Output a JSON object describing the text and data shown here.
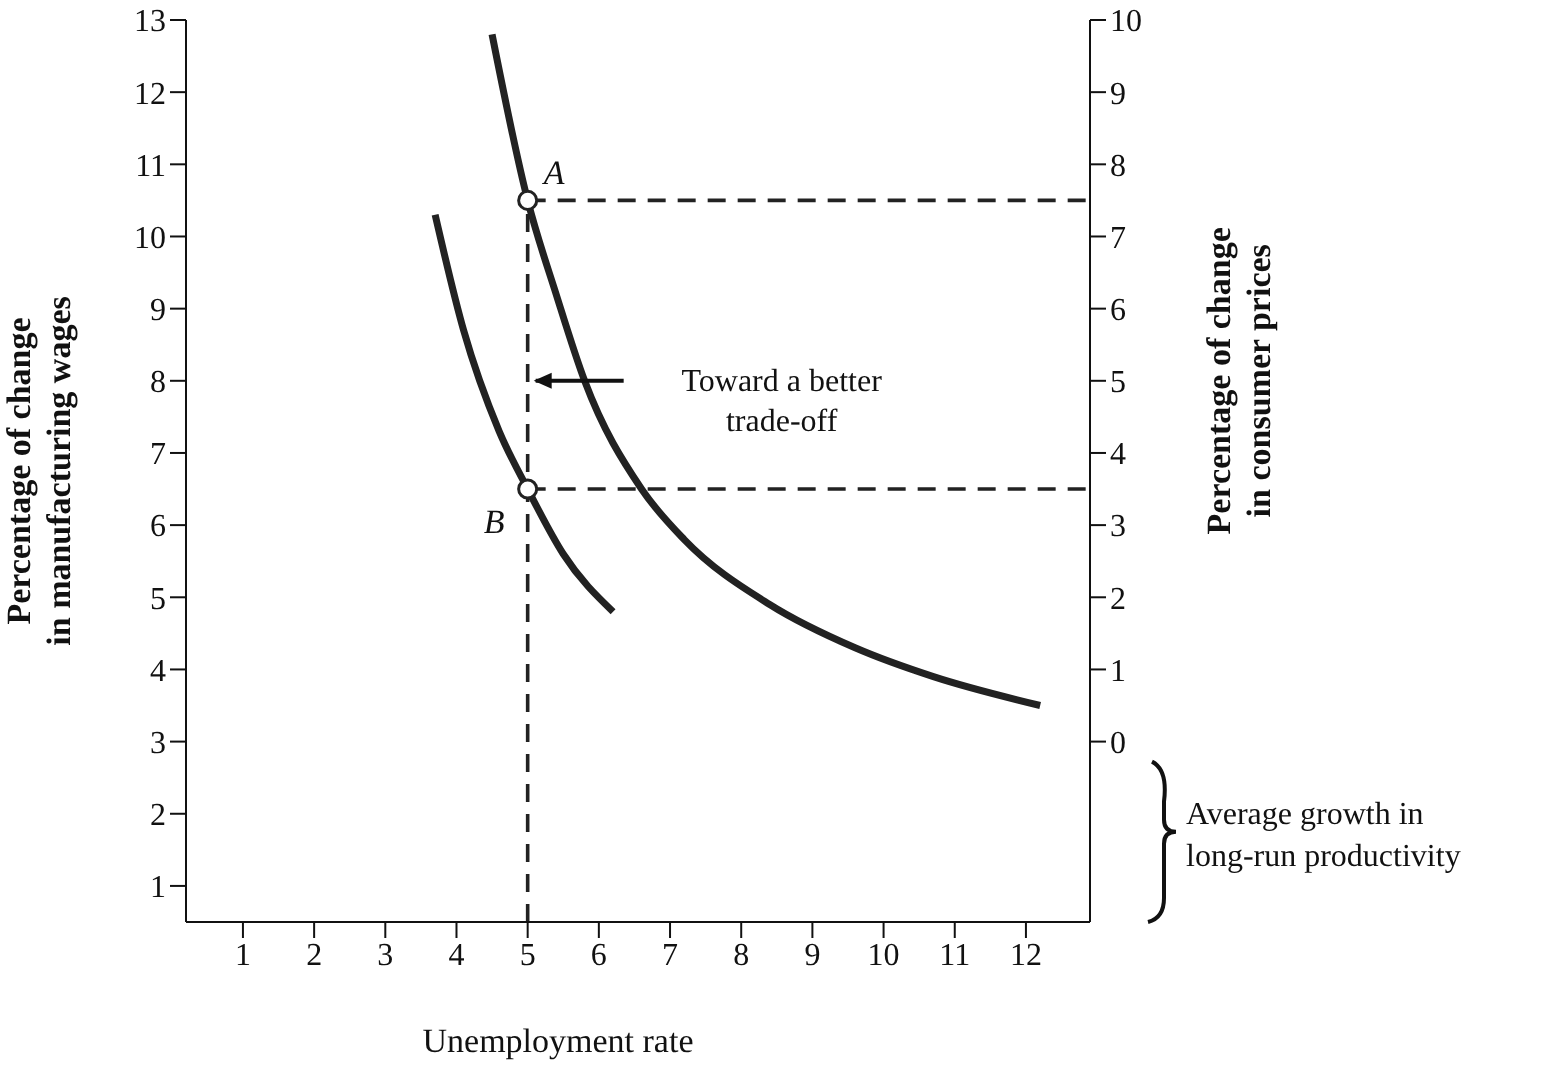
{
  "chart_data": {
    "type": "line",
    "xlabel": "Unemployment rate",
    "ylabel": "Percentage of change\nin manufacturing wages",
    "y2label": "Percentage of change\nin consumer prices",
    "xlim": [
      0.2,
      12.9
    ],
    "xticks": [
      1,
      2,
      3,
      4,
      5,
      6,
      7,
      8,
      9,
      10,
      11,
      12
    ],
    "ylim": [
      0.5,
      13
    ],
    "yticks": [
      1,
      2,
      3,
      4,
      5,
      6,
      7,
      8,
      9,
      10,
      11,
      12,
      13
    ],
    "y2lim": [
      -2.5,
      10
    ],
    "y2ticks": [
      0,
      1,
      2,
      3,
      4,
      5,
      6,
      7,
      8,
      9,
      10
    ],
    "grid": false,
    "series": [
      {
        "color": "#222222",
        "line_style": "solid",
        "marker": "none",
        "x": [
          4.5,
          5,
          5.4,
          5.8,
          6.6,
          7.2,
          8.4,
          9.6,
          10.7,
          12.2
        ],
        "values": [
          12.8,
          10.5,
          9.2,
          8.0,
          6.5,
          5.8,
          4.9,
          4.3,
          3.9,
          3.5
        ]
      },
      {
        "color": "#222222",
        "line_style": "solid",
        "marker": "none",
        "x": [
          3.7,
          4.1,
          4.6,
          5,
          5.5,
          6.2
        ],
        "values": [
          10.3,
          8.7,
          7.3,
          6.5,
          5.6,
          4.8
        ]
      },
      {
        "color": "#222222",
        "line_style": "dashed",
        "marker": "none",
        "x": [
          5,
          5
        ],
        "values": [
          0.5,
          10.5
        ]
      },
      {
        "color": "#222222",
        "line_style": "dashed",
        "marker": "none",
        "axis": "y2",
        "x": [
          5,
          12.9
        ],
        "values": [
          7.5,
          7.5
        ]
      },
      {
        "color": "#222222",
        "line_style": "dashed",
        "marker": "none",
        "axis": "y2",
        "x": [
          5,
          12.9
        ],
        "values": [
          3.5,
          3.5
        ]
      },
      {
        "type": "scatter",
        "color": "#222222",
        "marker": "circle",
        "x": [
          5,
          5
        ],
        "values": [
          10.5,
          6.5
        ]
      }
    ],
    "annotations": [
      {
        "text": "A",
        "x": 5,
        "y": 10.5
      },
      {
        "text": "B",
        "x": 5,
        "y": 6.5
      },
      "Toward a better\ntrade-off",
      "Average growth in\nlong-run productivity"
    ]
  }
}
